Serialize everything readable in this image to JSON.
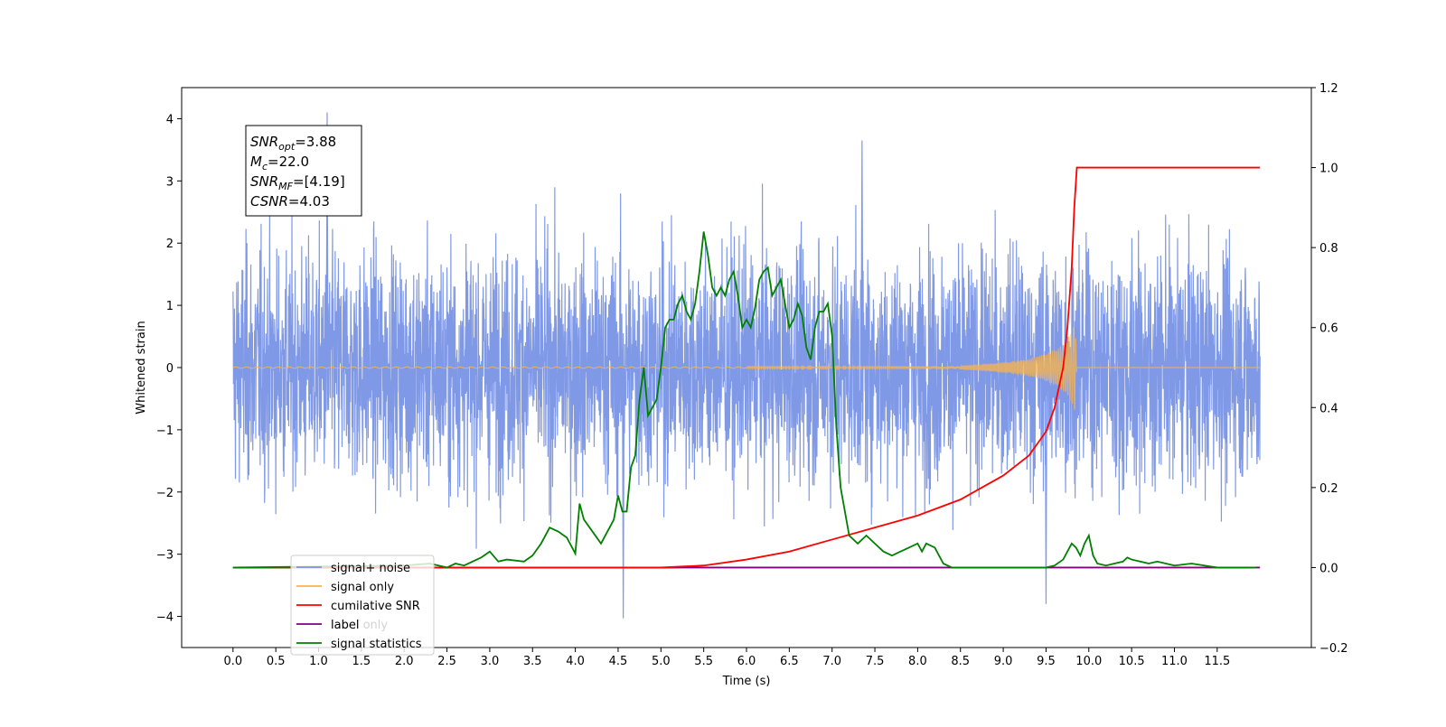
{
  "chart_data": {
    "type": "line",
    "xlabel": "Time (s)",
    "ylabel": "Whitened strain",
    "xlim": [
      -0.6,
      12.6
    ],
    "ylim": [
      -4.5,
      4.5
    ],
    "y2lim": [
      -0.2,
      1.2
    ],
    "x_ticks": [
      0.0,
      0.5,
      1.0,
      1.5,
      2.0,
      2.5,
      3.0,
      3.5,
      4.0,
      4.5,
      5.0,
      5.5,
      6.0,
      6.5,
      7.0,
      7.5,
      8.0,
      8.5,
      9.0,
      9.5,
      10.0,
      10.5,
      11.0,
      11.5
    ],
    "x_tick_labels": [
      "0.0",
      "0.5",
      "1.0",
      "1.5",
      "2.0",
      "2.5",
      "3.0",
      "3.5",
      "4.0",
      "4.5",
      "5.0",
      "5.5",
      "6.0",
      "6.5",
      "7.0",
      "7.5",
      "8.0",
      "8.5",
      "9.0",
      "9.5",
      "10.0",
      "10.5",
      "11.0",
      "11.5"
    ],
    "y_ticks": [
      4,
      3,
      2,
      1,
      0,
      -1,
      -2,
      -3,
      -4
    ],
    "y_tick_labels": [
      "4",
      "3",
      "2",
      "1",
      "0",
      "−1",
      "−2",
      "−3",
      "−4"
    ],
    "y2_ticks": [
      1.2,
      1.0,
      0.8,
      0.6,
      0.4,
      0.2,
      0.0,
      -0.2
    ],
    "y2_tick_labels": [
      "1.2",
      "1.0",
      "0.8",
      "0.6",
      "0.4",
      "0.2",
      "0.0",
      "−0.2"
    ],
    "grid": false,
    "legend_position": "lower-left",
    "legend": [
      "signal+ noise",
      "signal only",
      "cumilative SNR",
      "label",
      "signal statistics"
    ],
    "legend_extra_text": "label only",
    "annotation": {
      "lines": [
        {
          "base": "SNR",
          "sub": "opt",
          "rest": "=3.88"
        },
        {
          "base": "M",
          "sub": "c",
          "rest": "=22.0"
        },
        {
          "base": "SNR",
          "sub": "MF",
          "rest": "=[4.19]"
        },
        {
          "base": "CSNR",
          "sub": "",
          "rest": "=4.03"
        }
      ]
    },
    "series": [
      {
        "name": "signal+ noise",
        "axis": "left",
        "color": "#7994e6",
        "x_range": [
          0.0,
          12.0
        ],
        "y_range_approx": [
          -4.0,
          4.1
        ],
        "notable_points": [
          [
            1.1,
            4.1
          ],
          [
            4.56,
            -4.03
          ],
          [
            9.5,
            -3.8
          ],
          [
            7.35,
            3.65
          ]
        ]
      },
      {
        "name": "signal only",
        "axis": "left",
        "color": "#f5b350",
        "chirp_x": [
          8.5,
          9.0,
          9.3,
          9.5,
          9.65,
          9.75,
          9.82,
          9.84,
          9.86
        ],
        "chirp_amplitude": [
          0.03,
          0.08,
          0.14,
          0.22,
          0.32,
          0.45,
          0.65,
          0.75,
          0.0
        ]
      },
      {
        "name": "cumilative SNR",
        "axis": "right",
        "color": "#ff0000",
        "x": [
          0.0,
          5.0,
          5.5,
          6.0,
          6.5,
          7.0,
          7.5,
          8.0,
          8.5,
          9.0,
          9.3,
          9.5,
          9.6,
          9.7,
          9.75,
          9.8,
          9.83,
          9.86,
          9.9,
          12.0
        ],
        "y": [
          0.0,
          0.0,
          0.005,
          0.02,
          0.04,
          0.07,
          0.1,
          0.13,
          0.17,
          0.23,
          0.28,
          0.34,
          0.4,
          0.5,
          0.6,
          0.75,
          0.9,
          1.0,
          1.0,
          1.0
        ]
      },
      {
        "name": "label",
        "axis": "right",
        "color": "#800080",
        "x": [
          0.0,
          12.0
        ],
        "y": [
          0.0,
          0.0
        ]
      },
      {
        "name": "signal statistics",
        "axis": "right",
        "color": "#008000",
        "x": [
          0.0,
          2.0,
          2.3,
          2.5,
          2.6,
          2.7,
          2.9,
          3.0,
          3.1,
          3.2,
          3.4,
          3.5,
          3.6,
          3.7,
          3.8,
          3.9,
          4.0,
          4.05,
          4.1,
          4.2,
          4.3,
          4.4,
          4.45,
          4.5,
          4.55,
          4.6,
          4.65,
          4.7,
          4.75,
          4.8,
          4.85,
          4.9,
          4.95,
          5.0,
          5.05,
          5.1,
          5.15,
          5.2,
          5.25,
          5.3,
          5.35,
          5.4,
          5.45,
          5.5,
          5.55,
          5.6,
          5.65,
          5.7,
          5.75,
          5.8,
          5.85,
          5.9,
          5.95,
          6.0,
          6.05,
          6.1,
          6.15,
          6.2,
          6.25,
          6.3,
          6.35,
          6.4,
          6.45,
          6.5,
          6.55,
          6.6,
          6.65,
          6.7,
          6.75,
          6.8,
          6.85,
          6.9,
          6.95,
          7.0,
          7.05,
          7.1,
          7.2,
          7.3,
          7.4,
          7.5,
          7.6,
          7.7,
          7.8,
          7.9,
          8.0,
          8.05,
          8.1,
          8.2,
          8.3,
          8.4,
          8.5,
          8.7,
          9.0,
          9.3,
          9.5,
          9.6,
          9.7,
          9.75,
          9.8,
          9.85,
          9.9,
          9.95,
          10.0,
          10.05,
          10.1,
          10.2,
          10.3,
          10.4,
          10.45,
          10.5,
          10.6,
          10.7,
          10.8,
          10.9,
          11.0,
          11.2,
          11.5,
          11.8,
          11.95
        ],
        "y": [
          0.0,
          0.005,
          0.01,
          0.0,
          0.01,
          0.005,
          0.025,
          0.04,
          0.015,
          0.02,
          0.015,
          0.03,
          0.06,
          0.1,
          0.09,
          0.075,
          0.035,
          0.16,
          0.12,
          0.09,
          0.06,
          0.1,
          0.12,
          0.18,
          0.14,
          0.14,
          0.25,
          0.28,
          0.42,
          0.5,
          0.38,
          0.4,
          0.42,
          0.5,
          0.6,
          0.62,
          0.62,
          0.66,
          0.68,
          0.64,
          0.62,
          0.66,
          0.74,
          0.84,
          0.78,
          0.7,
          0.68,
          0.7,
          0.68,
          0.72,
          0.74,
          0.68,
          0.6,
          0.62,
          0.6,
          0.65,
          0.72,
          0.74,
          0.75,
          0.68,
          0.7,
          0.72,
          0.66,
          0.6,
          0.62,
          0.66,
          0.63,
          0.55,
          0.52,
          0.6,
          0.64,
          0.64,
          0.66,
          0.58,
          0.35,
          0.2,
          0.08,
          0.06,
          0.08,
          0.06,
          0.04,
          0.03,
          0.04,
          0.05,
          0.06,
          0.04,
          0.06,
          0.05,
          0.01,
          0.0,
          0.0,
          0.0,
          0.0,
          0.0,
          0.0,
          0.005,
          0.02,
          0.04,
          0.06,
          0.05,
          0.03,
          0.06,
          0.08,
          0.03,
          0.01,
          0.005,
          0.01,
          0.015,
          0.025,
          0.02,
          0.015,
          0.01,
          0.015,
          0.01,
          0.005,
          0.01,
          0.0,
          0.0,
          0.0
        ]
      }
    ]
  }
}
